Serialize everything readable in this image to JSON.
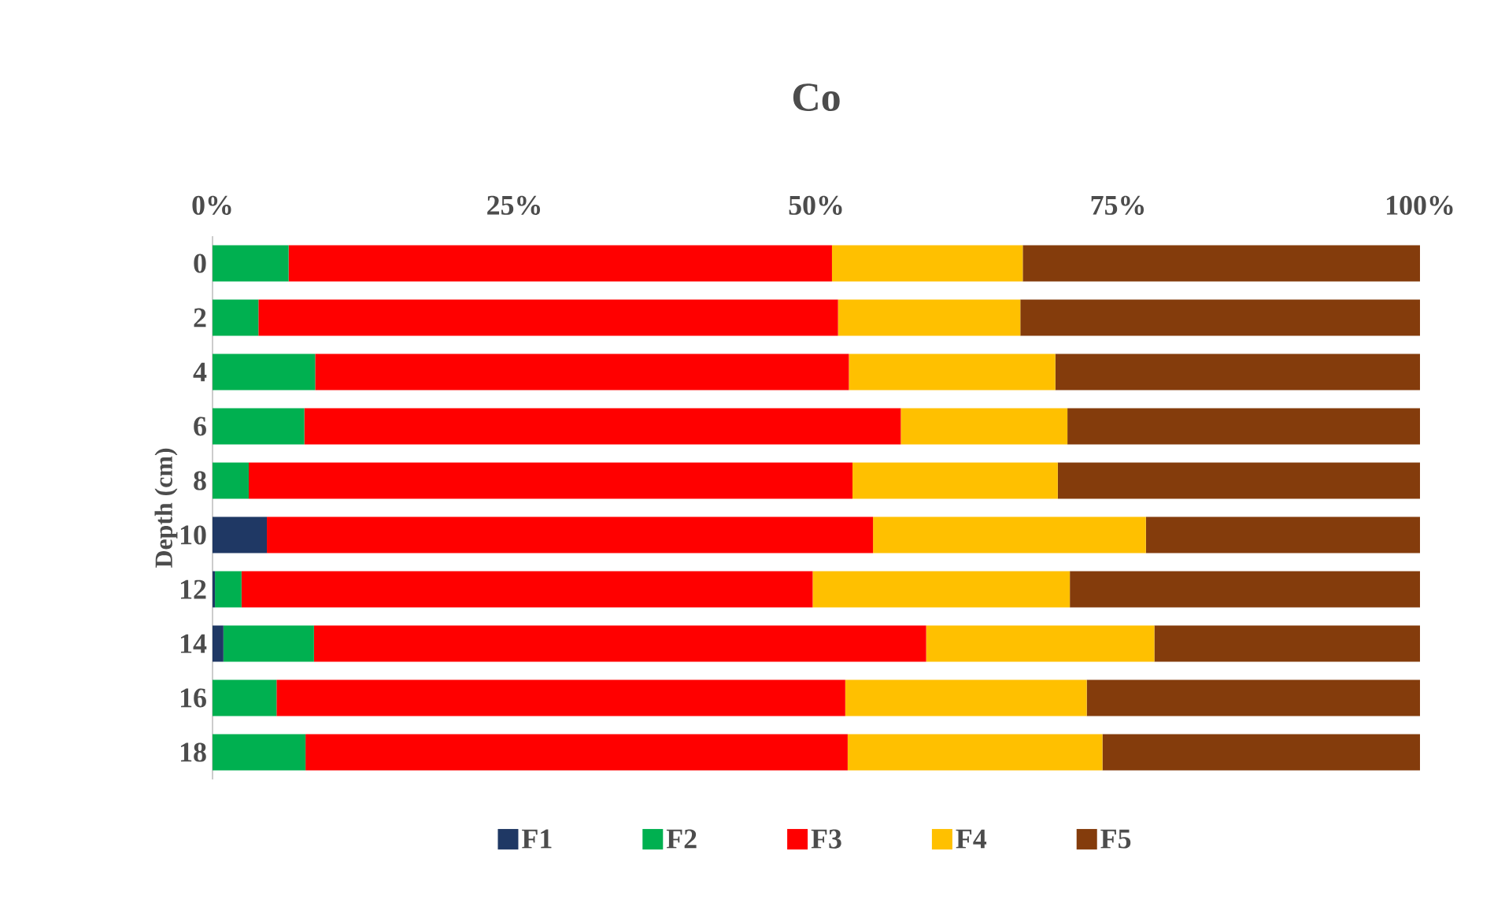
{
  "chart_data": {
    "type": "bar",
    "orientation": "horizontal",
    "stacked": true,
    "title": "Co",
    "ylabel": "Depth (cm)",
    "categories": [
      "0",
      "2",
      "4",
      "6",
      "8",
      "10",
      "12",
      "14",
      "16",
      "18"
    ],
    "series": [
      {
        "name": "F1",
        "color": "#1f3864",
        "values": [
          0,
          0,
          0,
          0,
          0,
          4.5,
          0.2,
          0.9,
          0,
          0
        ]
      },
      {
        "name": "F2",
        "color": "#00b050",
        "values": [
          6.3,
          3.8,
          8.5,
          7.6,
          3.0,
          0,
          2.2,
          7.5,
          5.3,
          7.7
        ]
      },
      {
        "name": "F3",
        "color": "#ff0000",
        "values": [
          45.0,
          48.0,
          44.2,
          49.4,
          50.0,
          50.2,
          47.3,
          50.7,
          47.1,
          44.9
        ]
      },
      {
        "name": "F4",
        "color": "#ffc000",
        "values": [
          15.8,
          15.1,
          17.1,
          13.8,
          17.0,
          22.6,
          21.3,
          18.9,
          20.0,
          21.1
        ]
      },
      {
        "name": "F5",
        "color": "#843c0c",
        "values": [
          32.9,
          33.1,
          30.2,
          29.2,
          30.0,
          22.7,
          29.0,
          22.0,
          27.6,
          26.3
        ]
      }
    ],
    "xlim": [
      0,
      100
    ],
    "xticks": [
      {
        "value": 0,
        "label": "0%"
      },
      {
        "value": 25,
        "label": "25%"
      },
      {
        "value": 50,
        "label": "50%"
      },
      {
        "value": 75,
        "label": "75%"
      },
      {
        "value": 100,
        "label": "100%"
      }
    ],
    "legend": "bottom",
    "grid": false
  }
}
